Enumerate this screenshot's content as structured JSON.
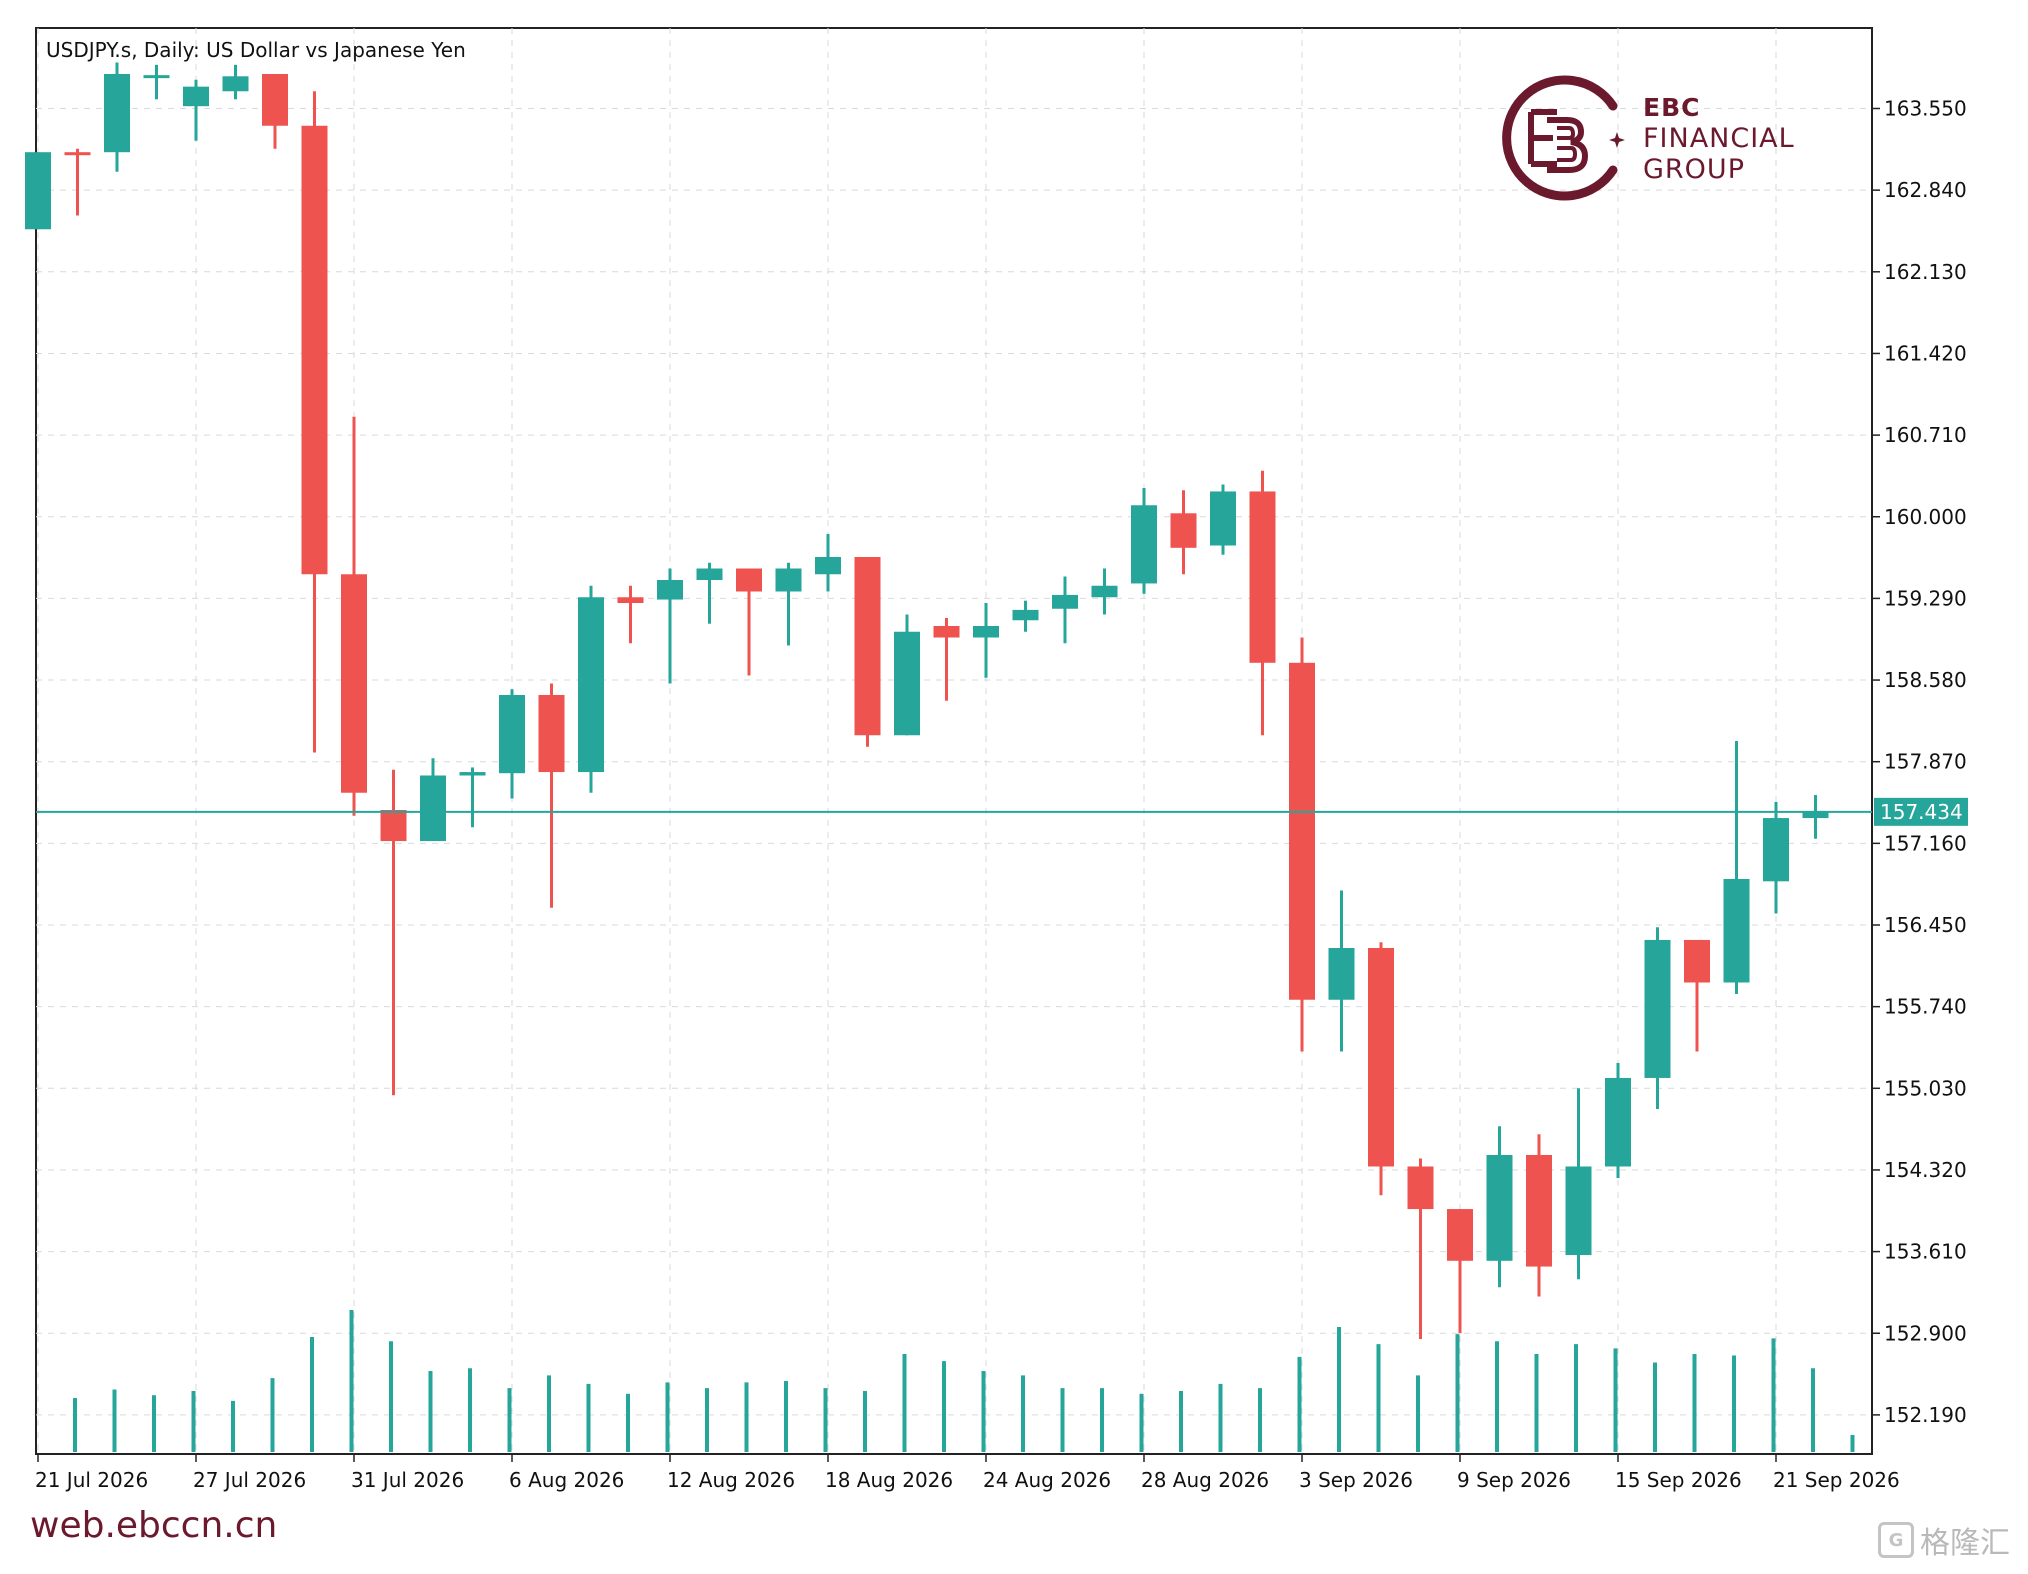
{
  "header": {
    "title": "USDJPY.s, Daily:  US Dollar vs Japanese Yen"
  },
  "logo": {
    "line1": "EBC",
    "line2": "FINANCIAL",
    "line3": "GROUP"
  },
  "footer": {
    "url": "web.ebccn.cn",
    "brand": "格隆汇"
  },
  "colors": {
    "bull": "#26a69a",
    "bear": "#ef5350",
    "grid": "#d9d9d9",
    "price_line": "#26a69a",
    "brand": "#6b1a2e"
  },
  "chart_data": {
    "type": "candlestick",
    "title": "USDJPY.s, Daily:  US Dollar vs Japanese Yen",
    "ylim": [
      151.85,
      164.25
    ],
    "y_ticks": [
      "163.550",
      "162.840",
      "162.130",
      "161.420",
      "160.710",
      "160.000",
      "159.290",
      "158.580",
      "157.870",
      "157.160",
      "156.450",
      "155.740",
      "155.030",
      "154.320",
      "153.610",
      "152.900",
      "152.190"
    ],
    "x_ticks": [
      {
        "index": 0,
        "label": "21 Jul 2026"
      },
      {
        "index": 4,
        "label": "27 Jul 2026"
      },
      {
        "index": 8,
        "label": "31 Jul 2026"
      },
      {
        "index": 12,
        "label": "6 Aug 2026"
      },
      {
        "index": 16,
        "label": "12 Aug 2026"
      },
      {
        "index": 20,
        "label": "18 Aug 2026"
      },
      {
        "index": 24,
        "label": "24 Aug 2026"
      },
      {
        "index": 28,
        "label": "28 Aug 2026"
      },
      {
        "index": 32,
        "label": "3 Sep 2026"
      },
      {
        "index": 36,
        "label": "9 Sep 2026"
      },
      {
        "index": 40,
        "label": "15 Sep 2026"
      },
      {
        "index": 44,
        "label": "21 Sep 2026"
      }
    ],
    "current_price": "157.434",
    "grid": true,
    "candles": [
      {
        "o": 162.5,
        "h": 163.17,
        "l": 162.5,
        "c": 163.17,
        "v": 1.0
      },
      {
        "o": 163.17,
        "h": 163.2,
        "l": 162.62,
        "c": 163.15,
        "v": 1.0
      },
      {
        "o": 163.17,
        "h": 163.95,
        "l": 163.0,
        "c": 163.85,
        "v": 1.0
      },
      {
        "o": 163.84,
        "h": 163.93,
        "l": 163.63,
        "c": 163.84,
        "v": 1.0
      },
      {
        "o": 163.57,
        "h": 163.8,
        "l": 163.27,
        "c": 163.74,
        "v": 1.0
      },
      {
        "o": 163.7,
        "h": 163.93,
        "l": 163.63,
        "c": 163.83,
        "v": 1.0
      },
      {
        "o": 163.85,
        "h": 163.85,
        "l": 163.2,
        "c": 163.4,
        "v": 1.0
      },
      {
        "o": 163.4,
        "h": 163.7,
        "l": 157.95,
        "c": 159.5,
        "v": 1.0
      },
      {
        "o": 159.5,
        "h": 160.87,
        "l": 157.4,
        "c": 157.6,
        "v": 1.0
      },
      {
        "o": 157.45,
        "h": 157.8,
        "l": 154.97,
        "c": 157.18,
        "v": 1.0
      },
      {
        "o": 157.18,
        "h": 157.9,
        "l": 157.18,
        "c": 157.75,
        "v": 1.0
      },
      {
        "o": 157.75,
        "h": 157.82,
        "l": 157.3,
        "c": 157.78,
        "v": 1.0
      },
      {
        "o": 157.77,
        "h": 158.5,
        "l": 157.55,
        "c": 158.45,
        "v": 1.0
      },
      {
        "o": 158.45,
        "h": 158.55,
        "l": 156.6,
        "c": 157.78,
        "v": 1.0
      },
      {
        "o": 157.78,
        "h": 159.4,
        "l": 157.6,
        "c": 159.3,
        "v": 1.0
      },
      {
        "o": 159.3,
        "h": 159.4,
        "l": 158.9,
        "c": 159.25,
        "v": 1.0
      },
      {
        "o": 159.28,
        "h": 159.55,
        "l": 158.55,
        "c": 159.45,
        "v": 1.0
      },
      {
        "o": 159.45,
        "h": 159.6,
        "l": 159.07,
        "c": 159.55,
        "v": 1.0
      },
      {
        "o": 159.55,
        "h": 159.55,
        "l": 158.62,
        "c": 159.35,
        "v": 1.0
      },
      {
        "o": 159.35,
        "h": 159.6,
        "l": 158.88,
        "c": 159.55,
        "v": 1.0
      },
      {
        "o": 159.5,
        "h": 159.85,
        "l": 159.35,
        "c": 159.65,
        "v": 1.0
      },
      {
        "o": 159.65,
        "h": 159.65,
        "l": 158.0,
        "c": 158.1,
        "v": 1.0
      },
      {
        "o": 158.1,
        "h": 159.15,
        "l": 158.1,
        "c": 159.0,
        "v": 1.0
      },
      {
        "o": 159.05,
        "h": 159.12,
        "l": 158.4,
        "c": 158.95,
        "v": 1.0
      },
      {
        "o": 158.95,
        "h": 159.25,
        "l": 158.6,
        "c": 159.05,
        "v": 1.0
      },
      {
        "o": 159.1,
        "h": 159.27,
        "l": 159.0,
        "c": 159.19,
        "v": 1.0
      },
      {
        "o": 159.2,
        "h": 159.48,
        "l": 158.9,
        "c": 159.32,
        "v": 1.0
      },
      {
        "o": 159.3,
        "h": 159.55,
        "l": 159.15,
        "c": 159.4,
        "v": 1.0
      },
      {
        "o": 159.42,
        "h": 160.25,
        "l": 159.33,
        "c": 160.1,
        "v": 1.0
      },
      {
        "o": 160.03,
        "h": 160.23,
        "l": 159.5,
        "c": 159.73,
        "v": 1.0
      },
      {
        "o": 159.75,
        "h": 160.28,
        "l": 159.67,
        "c": 160.22,
        "v": 1.0
      },
      {
        "o": 160.22,
        "h": 160.4,
        "l": 158.1,
        "c": 158.73,
        "v": 1.0
      },
      {
        "o": 158.73,
        "h": 158.95,
        "l": 155.35,
        "c": 155.8,
        "v": 1.0
      },
      {
        "o": 155.8,
        "h": 156.75,
        "l": 155.35,
        "c": 156.25,
        "v": 1.0
      },
      {
        "o": 156.25,
        "h": 156.3,
        "l": 154.1,
        "c": 154.35,
        "v": 1.0
      },
      {
        "o": 154.35,
        "h": 154.42,
        "l": 152.85,
        "c": 153.98,
        "v": 1.0
      },
      {
        "o": 153.98,
        "h": 153.98,
        "l": 152.9,
        "c": 153.53,
        "v": 1.0
      },
      {
        "o": 153.53,
        "h": 154.7,
        "l": 153.3,
        "c": 154.45,
        "v": 1.0
      },
      {
        "o": 154.45,
        "h": 154.63,
        "l": 153.22,
        "c": 153.48,
        "v": 1.0
      },
      {
        "o": 153.58,
        "h": 155.03,
        "l": 153.37,
        "c": 154.35,
        "v": 1.0
      },
      {
        "o": 154.35,
        "h": 155.25,
        "l": 154.25,
        "c": 155.12,
        "v": 1.0
      },
      {
        "o": 155.12,
        "h": 156.43,
        "l": 154.85,
        "c": 156.32,
        "v": 1.0
      },
      {
        "o": 156.32,
        "h": 156.32,
        "l": 155.35,
        "c": 155.95,
        "v": 1.0
      },
      {
        "o": 155.95,
        "h": 158.05,
        "l": 155.85,
        "c": 156.85,
        "v": 1.0
      },
      {
        "o": 156.83,
        "h": 157.52,
        "l": 156.55,
        "c": 157.38,
        "v": 1.0
      },
      {
        "o": 157.38,
        "h": 157.58,
        "l": 157.2,
        "c": 157.43,
        "v": 1.0
      }
    ],
    "volume": [
      0.38,
      0.44,
      0.4,
      0.43,
      0.36,
      0.52,
      0.81,
      1.0,
      0.78,
      0.57,
      0.59,
      0.45,
      0.54,
      0.48,
      0.41,
      0.49,
      0.45,
      0.49,
      0.5,
      0.45,
      0.43,
      0.69,
      0.64,
      0.57,
      0.54,
      0.45,
      0.45,
      0.41,
      0.43,
      0.48,
      0.45,
      0.67,
      0.88,
      0.76,
      0.54,
      0.83,
      0.78,
      0.69,
      0.76,
      0.73,
      0.63,
      0.69,
      0.68,
      0.8,
      0.59,
      0.12
    ]
  }
}
